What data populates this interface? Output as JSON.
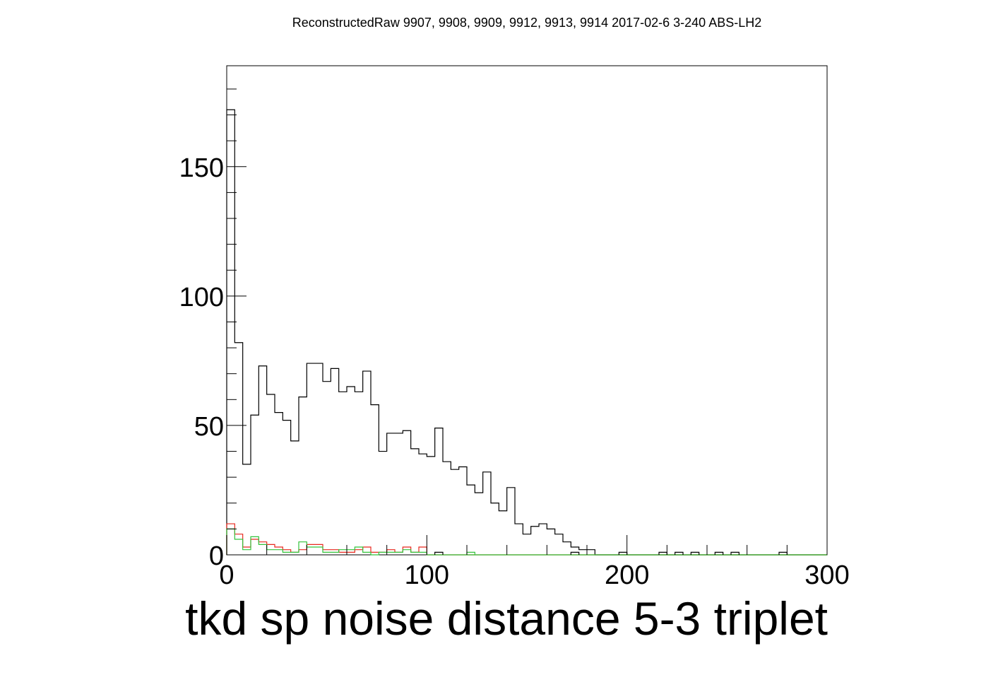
{
  "chart_data": {
    "type": "step-histogram",
    "title": "ReconstructedRaw 9907, 9908, 9909, 9912, 9913, 9914 2017-02-6 3-240 ABS-LH2",
    "xlabel": "tkd sp noise distance 5-3 triplet",
    "ylabel": "",
    "xlim": [
      0,
      300
    ],
    "ylim": [
      0,
      189
    ],
    "x_ticks": [
      0,
      100,
      200,
      300
    ],
    "y_ticks": [
      0,
      50,
      100,
      150
    ],
    "bin_width": 4,
    "series": [
      {
        "color": "#000000",
        "values": [
          172,
          82,
          35,
          54,
          73,
          62,
          55,
          52,
          44,
          61,
          74,
          74,
          67,
          72,
          63,
          65,
          63,
          71,
          58,
          40,
          47,
          47,
          48,
          41,
          39,
          38,
          49,
          36,
          33,
          34,
          27,
          24,
          32,
          20,
          17,
          26,
          12,
          8,
          11,
          12,
          10,
          8,
          5,
          3,
          2,
          2,
          0,
          0,
          0,
          0,
          0,
          0,
          0,
          0,
          0,
          0,
          0,
          0,
          0,
          0,
          0,
          0,
          0,
          0,
          0,
          0,
          0,
          0,
          0,
          0,
          0,
          0,
          0,
          0,
          0
        ]
      },
      {
        "color": "#e8281e",
        "values": [
          12,
          8,
          3,
          6,
          5,
          4,
          3,
          2,
          1,
          2,
          4,
          4,
          2,
          2,
          1,
          1,
          2,
          3,
          1,
          1,
          2,
          1,
          3,
          1,
          3,
          0,
          0,
          0,
          0,
          0,
          0,
          0,
          0,
          0,
          0,
          0,
          0,
          0,
          0,
          0,
          0,
          0,
          0,
          0,
          0,
          0,
          0,
          0,
          0,
          0,
          0,
          0,
          0,
          0,
          0,
          0,
          0,
          0,
          0,
          0,
          0,
          0,
          0,
          0,
          0,
          0,
          0,
          0,
          0,
          0,
          0,
          0,
          0,
          0,
          0
        ]
      },
      {
        "color": "#33c33b",
        "values": [
          10,
          6,
          2,
          7,
          4,
          2,
          2,
          1,
          1,
          5,
          3,
          3,
          1,
          1,
          2,
          2,
          3,
          1,
          0,
          1,
          1,
          1,
          2,
          1,
          1,
          0,
          0,
          0,
          0,
          0,
          0,
          0,
          0,
          0,
          0,
          0,
          0,
          0,
          0,
          0,
          0,
          0,
          0,
          0,
          0,
          0,
          0,
          0,
          0,
          0,
          0,
          0,
          0,
          0,
          0,
          0,
          0,
          0,
          0,
          0,
          0,
          0,
          0,
          0,
          0,
          0,
          0,
          0,
          0,
          0,
          0,
          0,
          0,
          0,
          0
        ]
      }
    ],
    "isolated_entries": [
      {
        "series": 0,
        "x": [
          104,
          172,
          196,
          216,
          224,
          232,
          244,
          252,
          276
        ],
        "value": 1
      },
      {
        "series": 2,
        "x": [
          120
        ],
        "value": 1
      }
    ],
    "legend": "none",
    "grid": false
  }
}
